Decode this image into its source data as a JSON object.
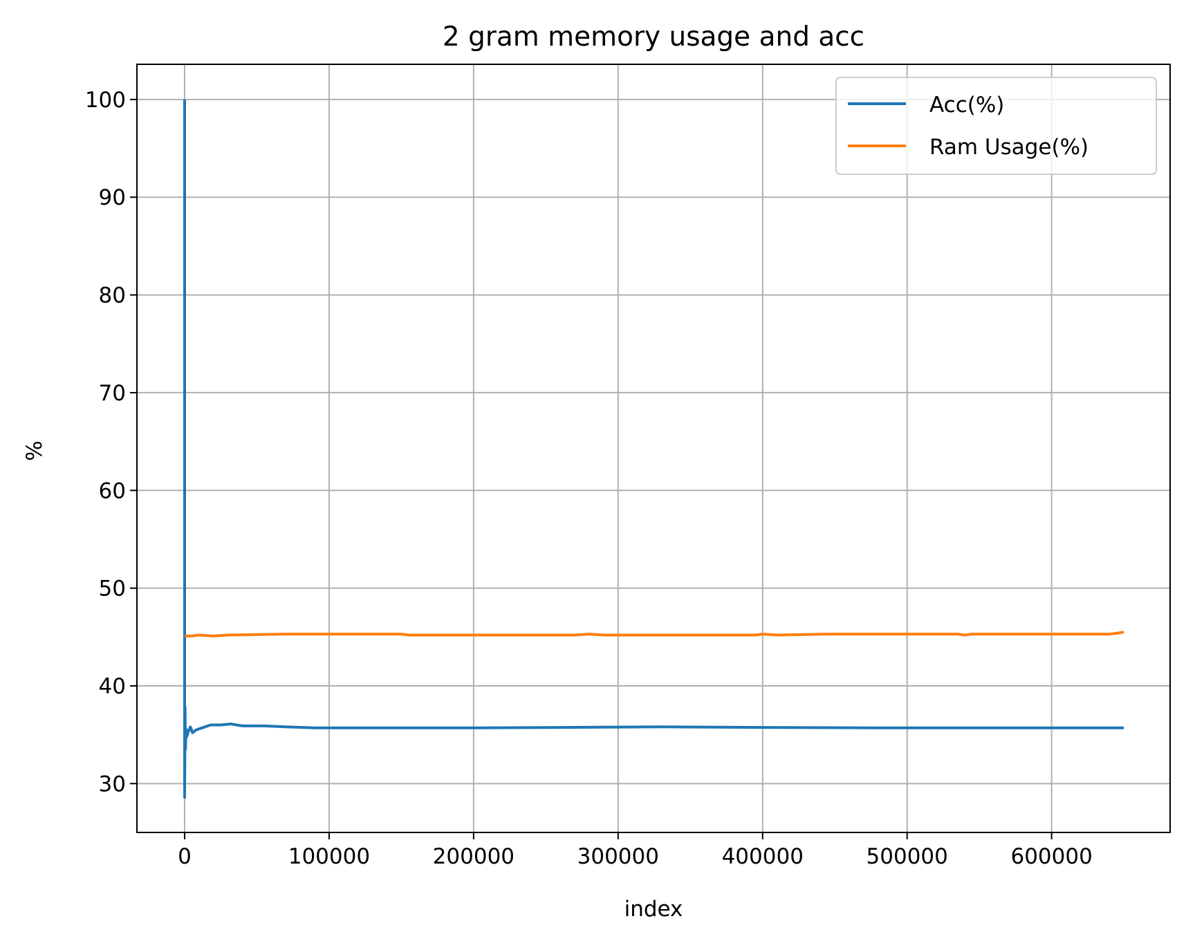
{
  "chart_data": {
    "type": "line",
    "title": "2 gram memory usage and acc",
    "xlabel": "index",
    "ylabel": "%",
    "xlim": [
      -33000,
      682000
    ],
    "ylim": [
      25,
      103.6
    ],
    "xticks": [
      0,
      100000,
      200000,
      300000,
      400000,
      500000,
      600000
    ],
    "yticks": [
      30,
      40,
      50,
      60,
      70,
      80,
      90,
      100
    ],
    "grid": true,
    "legend_position": "upper right",
    "series": [
      {
        "name": "Acc(%)",
        "color": "#1f77b4",
        "points": [
          [
            0,
            100
          ],
          [
            0,
            28.6
          ],
          [
            300,
            37.8
          ],
          [
            600,
            33.5
          ],
          [
            1000,
            35.6
          ],
          [
            1500,
            34.8
          ],
          [
            2500,
            35.3
          ],
          [
            4000,
            35.8
          ],
          [
            5500,
            35.2
          ],
          [
            8000,
            35.5
          ],
          [
            12000,
            35.7
          ],
          [
            18000,
            36.0
          ],
          [
            25000,
            36.0
          ],
          [
            32000,
            36.1
          ],
          [
            40000,
            35.9
          ],
          [
            55000,
            35.9
          ],
          [
            70000,
            35.8
          ],
          [
            90000,
            35.7
          ],
          [
            120000,
            35.7
          ],
          [
            160000,
            35.7
          ],
          [
            200000,
            35.7
          ],
          [
            260000,
            35.75
          ],
          [
            330000,
            35.8
          ],
          [
            400000,
            35.75
          ],
          [
            480000,
            35.7
          ],
          [
            560000,
            35.7
          ],
          [
            650000,
            35.7
          ]
        ]
      },
      {
        "name": "Ram Usage(%)",
        "color": "#ff7f0e",
        "points": [
          [
            0,
            45.1
          ],
          [
            5000,
            45.1
          ],
          [
            10000,
            45.2
          ],
          [
            20000,
            45.1
          ],
          [
            30000,
            45.2
          ],
          [
            70000,
            45.3
          ],
          [
            100000,
            45.3
          ],
          [
            150000,
            45.3
          ],
          [
            155000,
            45.2
          ],
          [
            270000,
            45.2
          ],
          [
            280000,
            45.3
          ],
          [
            290000,
            45.2
          ],
          [
            395000,
            45.2
          ],
          [
            400000,
            45.3
          ],
          [
            410000,
            45.2
          ],
          [
            445000,
            45.3
          ],
          [
            535000,
            45.3
          ],
          [
            540000,
            45.2
          ],
          [
            545000,
            45.3
          ],
          [
            640000,
            45.3
          ],
          [
            646000,
            45.4
          ],
          [
            650000,
            45.5
          ]
        ]
      }
    ]
  }
}
